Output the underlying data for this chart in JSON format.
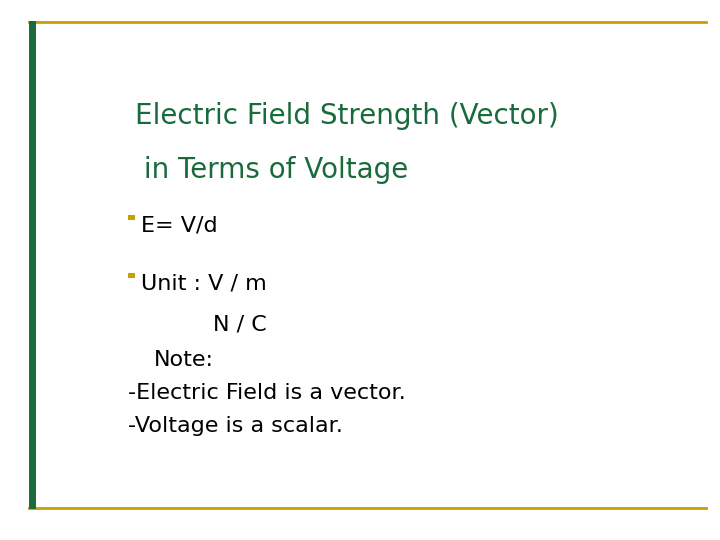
{
  "title_line1": "Electric Field Strength (Vector)",
  "title_line2": " in Terms of Voltage",
  "title_color": "#1a6b3c",
  "bullet_color": "#c8a000",
  "bullet1_text": "E= V/d",
  "bullet2_text": "Unit : V / m",
  "nc_line": "N / C",
  "note_line": "Note:",
  "line4": "-Electric Field is a vector.",
  "line5": "-Voltage is a scalar.",
  "body_text_color": "#000000",
  "border_color": "#c8a000",
  "background_color": "#ffffff",
  "left_bar_color": "#1a6b3c",
  "font_size_title": 20,
  "font_size_body": 16
}
